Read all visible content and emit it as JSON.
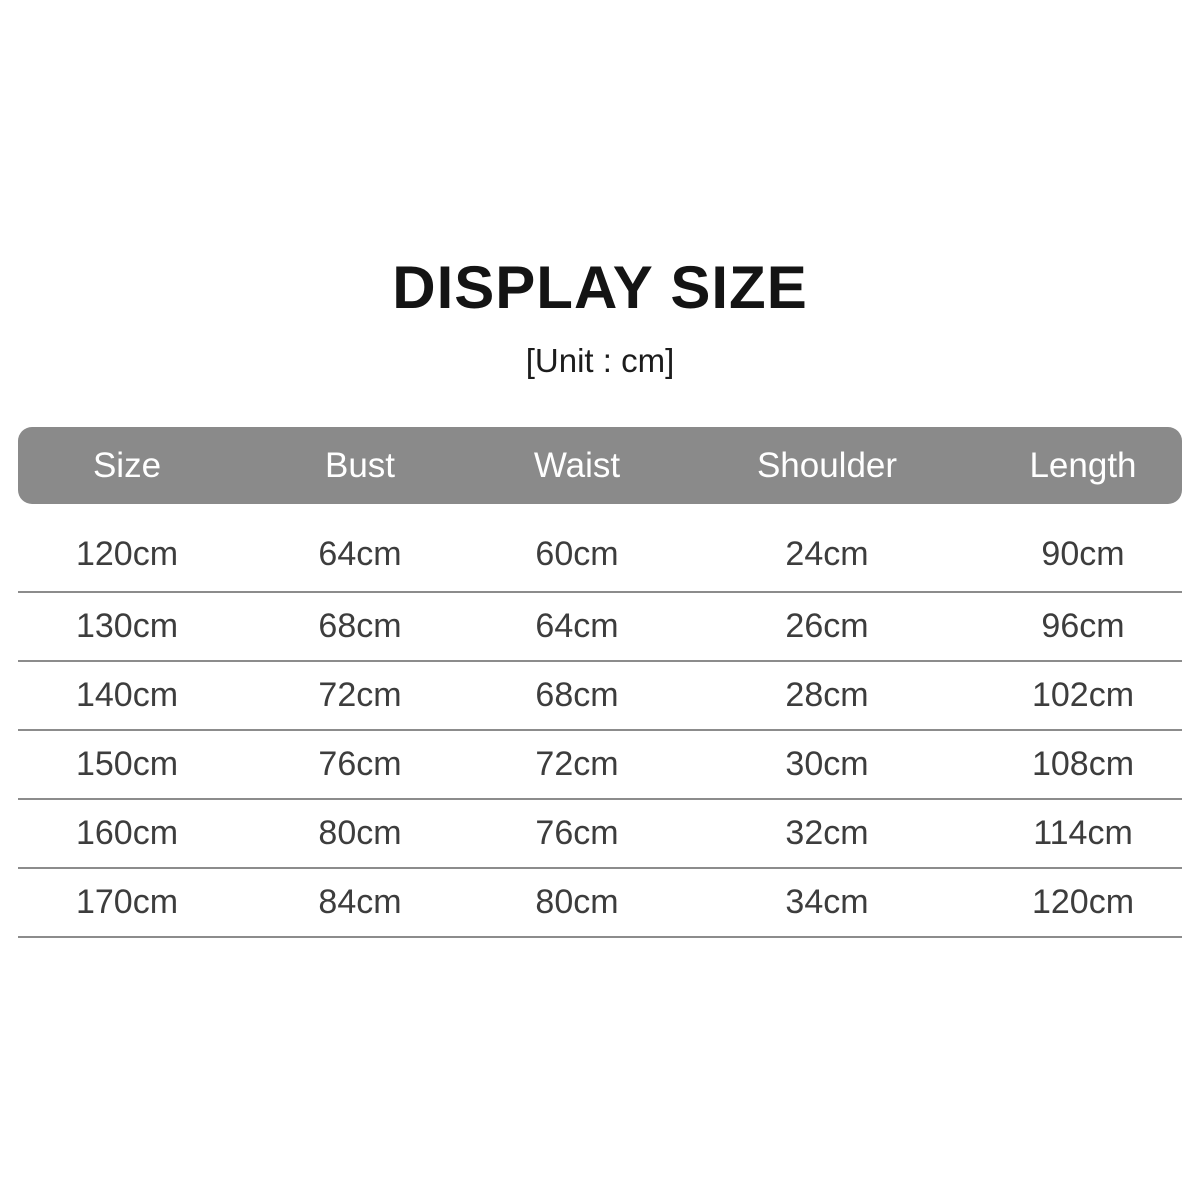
{
  "colors": {
    "header_bg": "#8a8a8a",
    "header_text": "#ffffff",
    "body_text": "#3d3d3d",
    "divider": "#8c8c8c",
    "title_text": "#141414"
  },
  "chart_data": {
    "type": "table",
    "title": "DISPLAY SIZE",
    "unit_note": "[Unit : cm]",
    "unit": "cm",
    "columns": [
      "Size",
      "Bust",
      "Waist",
      "Shoulder",
      "Length"
    ],
    "rows": [
      [
        "120cm",
        "64cm",
        "60cm",
        "24cm",
        "90cm"
      ],
      [
        "130cm",
        "68cm",
        "64cm",
        "26cm",
        "96cm"
      ],
      [
        "140cm",
        "72cm",
        "68cm",
        "28cm",
        "102cm"
      ],
      [
        "150cm",
        "76cm",
        "72cm",
        "30cm",
        "108cm"
      ],
      [
        "160cm",
        "80cm",
        "76cm",
        "32cm",
        "114cm"
      ],
      [
        "170cm",
        "84cm",
        "80cm",
        "34cm",
        "120cm"
      ]
    ],
    "layout": {
      "header_style": "gray rounded bar, white text",
      "row_dividers": true,
      "grid": "horizontal rules only"
    }
  }
}
